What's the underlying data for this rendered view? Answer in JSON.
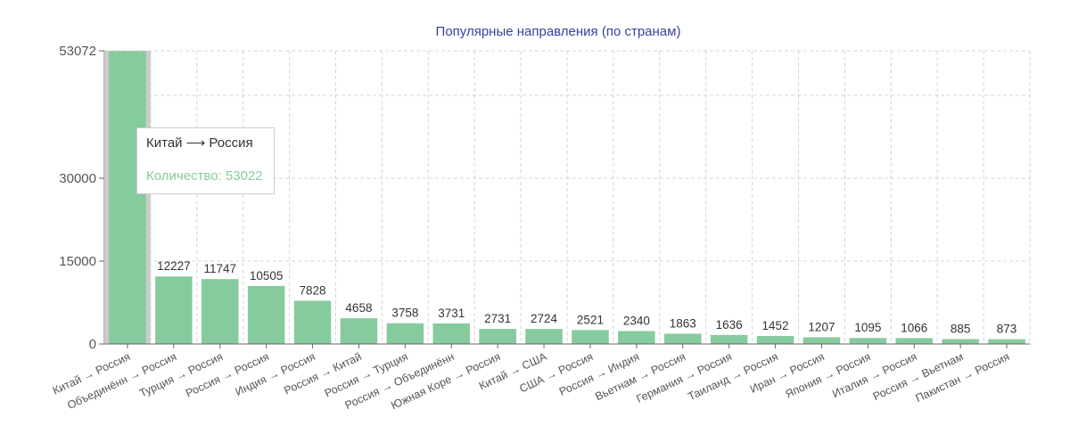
{
  "chart_data": {
    "type": "bar",
    "title": "Популярные направления (по странам)",
    "categories": [
      "Китай → Россия",
      "Объединённ → Россия",
      "Турция → Россия",
      "Россия → Россия",
      "Индия → Россия",
      "Россия → Китай",
      "Россия → Турция",
      "Россия → Объединённ",
      "Южная Коре → Россия",
      "Китай → США",
      "США → Россия",
      "Россия → Индия",
      "Вьетнам → Россия",
      "Германия → Россия",
      "Таиланд → Россия",
      "Иран → Россия",
      "Япония → Россия",
      "Италия → Россия",
      "Россия → Вьетнам",
      "Пакистан → Россия"
    ],
    "values": [
      53022,
      12227,
      11747,
      10505,
      7828,
      4658,
      3758,
      3731,
      2731,
      2724,
      2521,
      2340,
      1863,
      1636,
      1452,
      1207,
      1095,
      1066,
      885,
      873
    ],
    "data_labels": [
      "",
      "12227",
      "11747",
      "10505",
      "7828",
      "4658",
      "3758",
      "3731",
      "2731",
      "2724",
      "2521",
      "2340",
      "1863",
      "1636",
      "1452",
      "1207",
      "1095",
      "1066",
      "885",
      "873"
    ],
    "yticks": [
      0,
      15000,
      30000,
      53072
    ],
    "ylim": [
      0,
      53072
    ],
    "grid": true,
    "highlighted_index": 0,
    "colors": {
      "bar": "#86cb9d",
      "highlight": "#cccccc",
      "title": "#3a3fa0"
    }
  },
  "tooltip": {
    "title": "Китай ⟶ Россия",
    "value_text": "Количество: 53022"
  }
}
